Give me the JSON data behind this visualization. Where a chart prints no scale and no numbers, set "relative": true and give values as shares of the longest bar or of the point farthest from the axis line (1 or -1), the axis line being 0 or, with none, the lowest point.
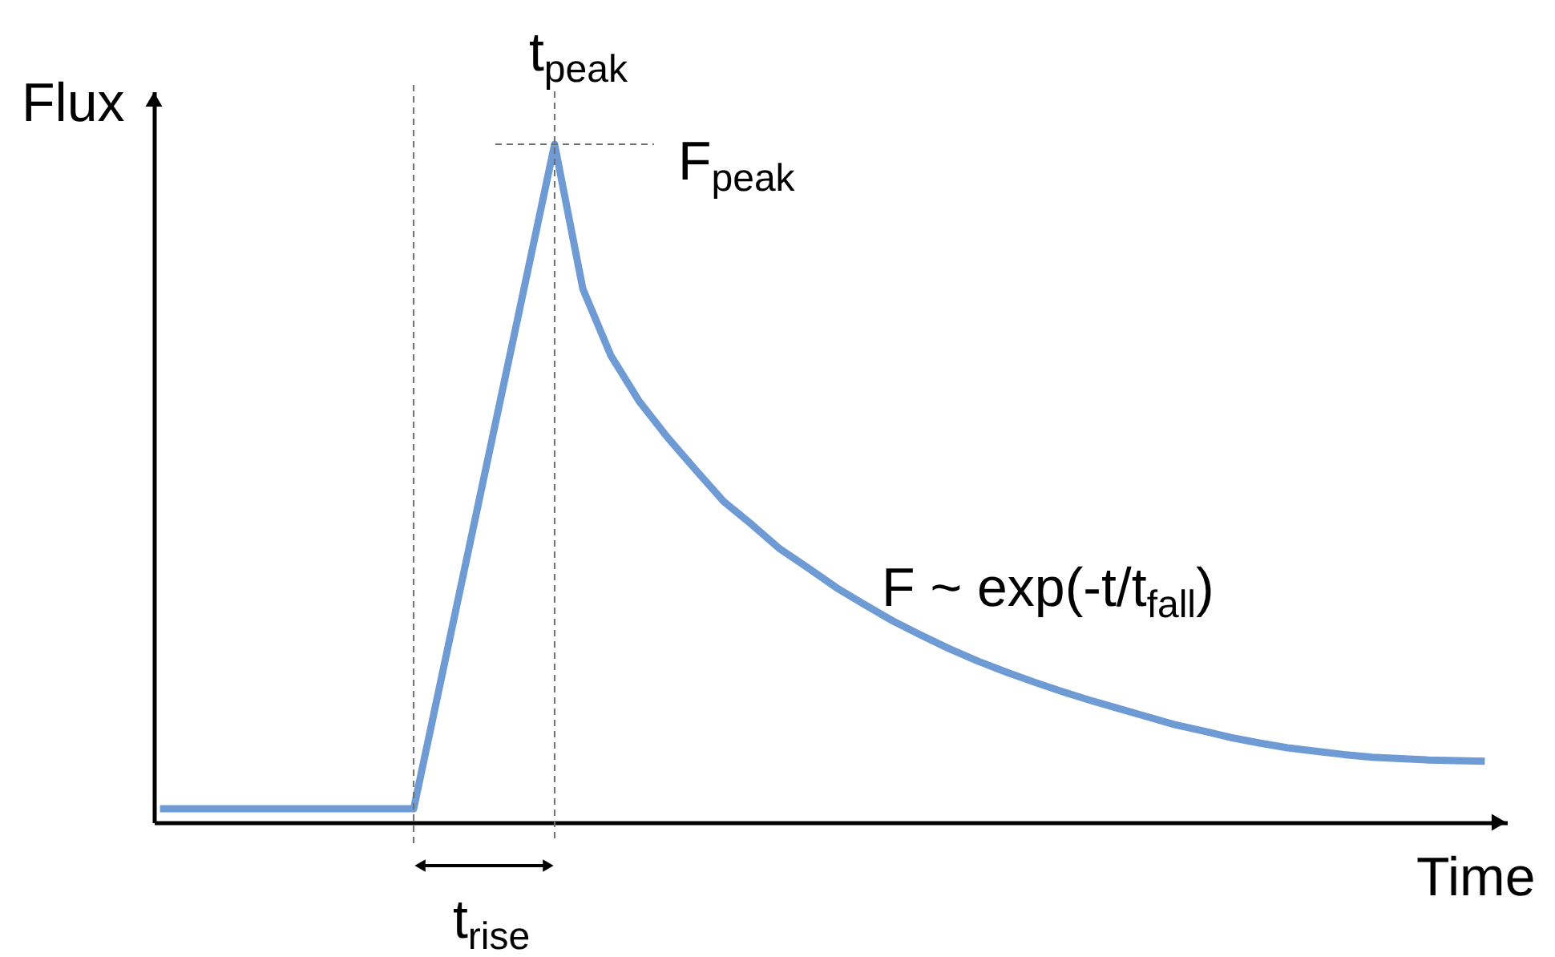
{
  "chart_data": {
    "type": "line",
    "xlabel": "Time",
    "ylabel": "Flux",
    "relative": true,
    "tick_labels": false,
    "categories": [
      null,
      null,
      null,
      null,
      null,
      null,
      null,
      null,
      null,
      null,
      null,
      null,
      null,
      null,
      null,
      null,
      null,
      null,
      null,
      null,
      null,
      null,
      null,
      null,
      null,
      null,
      null,
      null,
      null,
      null,
      null,
      null,
      null,
      null,
      null,
      null,
      null,
      null,
      null,
      null,
      null,
      null,
      null,
      null,
      null,
      null,
      null,
      null
    ],
    "values": [
      0.02,
      0.02,
      0.02,
      0.02,
      0.02,
      0.02,
      0.02,
      0.02,
      0.02,
      0.02,
      0.216,
      0.412,
      0.608,
      0.804,
      1,
      0.787,
      0.688,
      0.621,
      0.568,
      0.52,
      0.473,
      0.439,
      0.403,
      0.375,
      0.346,
      0.321,
      0.297,
      0.276,
      0.256,
      0.238,
      0.222,
      0.207,
      0.193,
      0.18,
      0.168,
      0.156,
      0.144,
      0.135,
      0.125,
      0.117,
      0.11,
      0.105,
      0.1,
      0.096,
      0.094,
      0.092,
      0.091,
      0.09
    ],
    "color": "#6f9bd5",
    "ref_lines": [
      {
        "axis": "y",
        "value": 1,
        "label": "F$_{peak}$",
        "line_style": "dashed"
      }
    ],
    "annotations": [
      {
        "text": "t$_{peak}$",
        "y": 1
      },
      "t$_{rise}$",
      "F ~ exp(-t/t$_{fall}$)"
    ]
  }
}
